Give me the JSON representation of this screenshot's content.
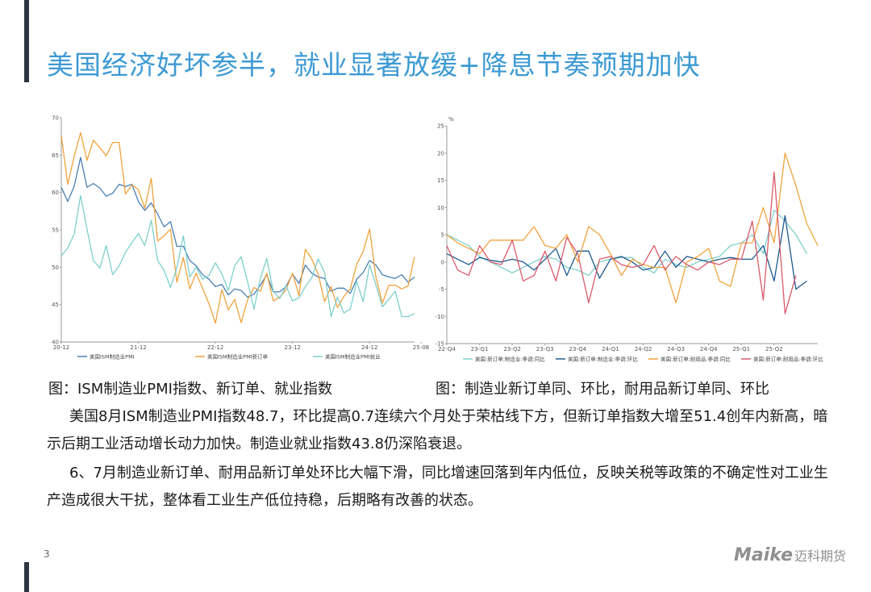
{
  "title": "美国经济好坏参半，就业显著放缓+降息节奏预期加快",
  "captions": {
    "left": "图：ISM制造业PMI指数、新订单、就业指数",
    "right": "图：制造业新订单同、环比，耐用品新订单同、环比"
  },
  "paragraphs": [
    "美国8月ISM制造业PMI指数48.7，环比提高0.7连续六个月处于荣枯线下方，但新订单指数大增至51.4创年内新高，暗示后期工业活动增长动力加快。制造业就业指数43.8仍深陷衰退。",
    "6、7月制造业新订单、耐用品新订单处环比大幅下滑，同比增速回落到年内低位，反映关税等政策的不确定性对工业生产造成很大干扰，整体看工业生产低位持稳，后期略有改善的状态。"
  ],
  "page_number": "3",
  "logo": {
    "latin": "Maike",
    "cn": "迈科期货"
  },
  "colors": {
    "title": "#3d9ad3",
    "accent_bar": "#2c3440",
    "text": "#1a1a1a"
  },
  "chart_data": [
    {
      "type": "line",
      "ylim": [
        40,
        70
      ],
      "yticks": [
        "40",
        "45",
        "50",
        "55",
        "60",
        "65",
        "70"
      ],
      "xticks": [
        {
          "label": "20-12",
          "index": 0
        },
        {
          "label": "21-12",
          "index": 12
        },
        {
          "label": "22-12",
          "index": 24
        },
        {
          "label": "23-12",
          "index": 36
        },
        {
          "label": "24-12",
          "index": 48
        },
        {
          "label": "25-08",
          "index": 56
        }
      ],
      "grid": false,
      "legend_position": "bottom",
      "series": [
        {
          "name": "美国ISM制造业PMI",
          "color": "#4a7fb4",
          "values": [
            60.7,
            58.8,
            60.8,
            64.7,
            60.7,
            61.2,
            60.6,
            59.5,
            59.9,
            61.1,
            60.8,
            61.1,
            58.8,
            57.6,
            58.6,
            57.1,
            55.4,
            56.1,
            52.8,
            52.8,
            50.9,
            50.2,
            49.0,
            48.4,
            47.4,
            47.7,
            46.3,
            47.1,
            46.9,
            46.0,
            46.4,
            47.6,
            49.0,
            46.7,
            46.7,
            47.4,
            49.1,
            47.8,
            50.3,
            49.2,
            48.7,
            48.5,
            46.8,
            47.2,
            47.2,
            46.5,
            48.4,
            49.3,
            50.9,
            50.3,
            49.0,
            48.7,
            48.5,
            49.0,
            48.0,
            48.7
          ]
        },
        {
          "name": "美国ISM制造业PMI新订单",
          "color": "#f0a33d",
          "values": [
            67.6,
            61.1,
            64.8,
            68.0,
            64.3,
            67.0,
            66.0,
            64.9,
            66.7,
            66.7,
            59.8,
            61.0,
            60.4,
            57.9,
            61.9,
            53.5,
            54.2,
            55.1,
            48.0,
            51.3,
            47.1,
            49.2,
            47.2,
            45.1,
            42.5,
            47.0,
            44.3,
            45.7,
            42.6,
            45.6,
            47.3,
            46.8,
            49.2,
            45.5,
            46.0,
            47.0,
            49.2,
            46.2,
            52.4,
            51.1,
            49.1,
            45.4,
            47.4,
            44.6,
            46.1,
            47.1,
            50.4,
            52.1,
            55.1,
            48.6,
            45.2,
            47.6,
            47.6,
            47.1,
            47.5,
            51.4
          ]
        },
        {
          "name": "美国ISM制造业PMI就业",
          "color": "#7ed0cc",
          "values": [
            51.5,
            52.6,
            54.4,
            59.6,
            55.1,
            50.9,
            49.9,
            52.9,
            49.0,
            50.2,
            52.0,
            53.3,
            54.5,
            52.9,
            56.3,
            50.9,
            49.6,
            47.3,
            49.9,
            54.2,
            48.7,
            50.0,
            48.4,
            48.9,
            50.6,
            49.1,
            46.9,
            50.2,
            51.4,
            48.1,
            44.4,
            48.5,
            51.2,
            46.8,
            45.8,
            47.5,
            45.5,
            45.9,
            47.4,
            48.6,
            51.1,
            49.3,
            43.4,
            46.0,
            43.9,
            44.4,
            48.1,
            45.4,
            50.3,
            47.6,
            44.7,
            45.7,
            46.8,
            43.4,
            43.4,
            43.8
          ]
        }
      ]
    },
    {
      "type": "line",
      "ylabel": "%",
      "ylim": [
        -15,
        25
      ],
      "yticks": [
        "-15",
        "-10",
        "-5",
        "0",
        "5",
        "10",
        "15",
        "20",
        "25"
      ],
      "xticks": [
        {
          "label": "22-Q4",
          "index": 0
        },
        {
          "label": "23-Q1",
          "index": 3
        },
        {
          "label": "23-Q2",
          "index": 6
        },
        {
          "label": "23-Q3",
          "index": 9
        },
        {
          "label": "23-Q4",
          "index": 12
        },
        {
          "label": "24-Q1",
          "index": 15
        },
        {
          "label": "24-Q2",
          "index": 18
        },
        {
          "label": "24-Q3",
          "index": 21
        },
        {
          "label": "24-Q4",
          "index": 24
        },
        {
          "label": "25-Q1",
          "index": 27
        },
        {
          "label": "25-Q2",
          "index": 30
        }
      ],
      "grid": false,
      "legend_position": "bottom",
      "series": [
        {
          "name": "美国:新订单:制造业:季调:同比",
          "color": "#7ed0cc",
          "values": [
            5.0,
            4.0,
            3.0,
            1.0,
            0.0,
            -1.0,
            -2.0,
            -1.0,
            0.0,
            1.0,
            0.5,
            -1.0,
            -1.5,
            -2.5,
            0.0,
            0.5,
            0.8,
            0.8,
            -1.0,
            -2.0,
            0.5,
            -0.5,
            -1.0,
            0.0,
            0.5,
            1.0,
            3.0,
            3.5,
            5.0,
            1.5,
            9.5,
            7.5,
            5.0,
            1.5
          ]
        },
        {
          "name": "美国:新订单:制造业:季调:环比",
          "color": "#1f5a8f",
          "values": [
            1.5,
            0.5,
            -0.5,
            0.8,
            0.3,
            0.0,
            0.5,
            0.0,
            -1.5,
            0.5,
            2.5,
            -2.5,
            2.0,
            2.0,
            -3.0,
            0.5,
            1.0,
            0.0,
            -1.5,
            -1.0,
            2.0,
            -1.0,
            1.0,
            0.5,
            0.0,
            0.5,
            0.8,
            0.5,
            0.5,
            3.0,
            -3.5,
            8.5,
            -5.0,
            -3.5
          ]
        },
        {
          "name": "美国:新订单:耐用品:季调:同比",
          "color": "#f0a33d",
          "values": [
            5.0,
            3.5,
            2.5,
            1.5,
            4.0,
            4.0,
            4.0,
            4.0,
            6.5,
            3.0,
            2.5,
            5.0,
            0.0,
            6.5,
            5.0,
            1.5,
            -2.5,
            0.5,
            -0.5,
            -1.0,
            -1.0,
            -7.5,
            0.0,
            1.0,
            2.5,
            -3.5,
            -4.5,
            3.5,
            3.5,
            10.0,
            3.5,
            20.0,
            14.0,
            7.0,
            3.0
          ]
        },
        {
          "name": "美国:新订单:耐用品:季调:环比",
          "color": "#d95a6a",
          "values": [
            3.0,
            -1.5,
            -2.5,
            3.0,
            0.0,
            -0.5,
            4.0,
            -3.5,
            -2.5,
            2.0,
            -3.5,
            4.5,
            1.5,
            -7.5,
            0.5,
            1.0,
            -0.5,
            -1.0,
            -0.5,
            3.0,
            -1.5,
            1.0,
            -0.5,
            -1.5,
            0.0,
            -0.5,
            0.5,
            0.5,
            7.5,
            -7.0,
            16.5,
            -9.5,
            -2.5
          ]
        }
      ]
    }
  ]
}
